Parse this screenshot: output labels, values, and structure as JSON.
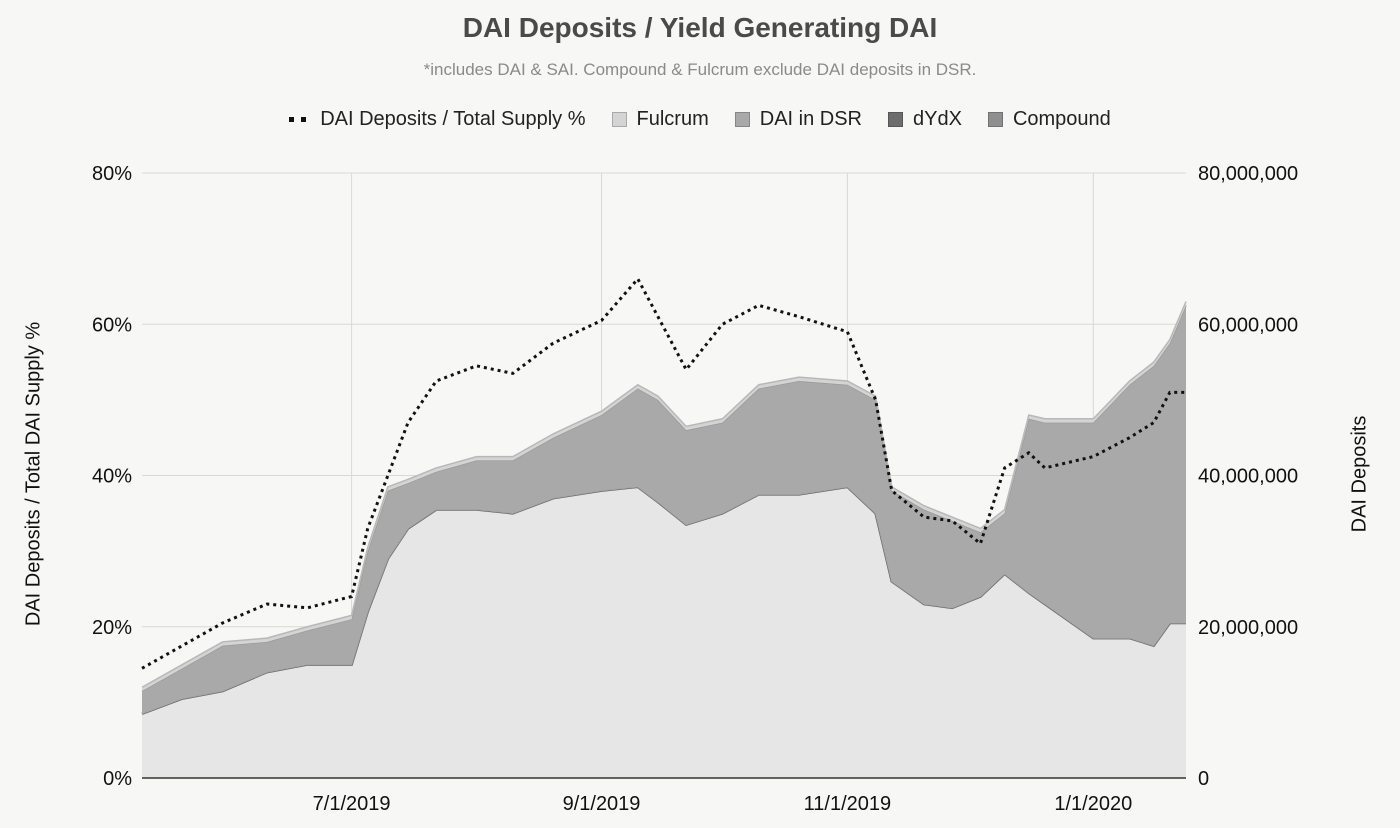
{
  "chart_data": {
    "type": "area",
    "title": "DAI Deposits / Yield Generating DAI",
    "subtitle": "*includes DAI & SAI. Compound & Fulcrum exclude DAI deposits in DSR.",
    "ylabel_left": "DAI Deposits / Total DAI Supply %",
    "ylabel_right": "DAI Deposits",
    "y_left_ticks": [
      "0%",
      "20%",
      "40%",
      "60%",
      "80%"
    ],
    "y_right_ticks": [
      "0",
      "20,000,000",
      "40,000,000",
      "60,000,000",
      "80,000,000"
    ],
    "x_ticks": [
      "7/1/2019",
      "9/1/2019",
      "11/1/2019",
      "1/1/2020"
    ],
    "ylim_left": [
      0,
      80
    ],
    "ylim_right": [
      0,
      80000000
    ],
    "grid": true,
    "legend_position": "top",
    "x_dates": [
      "2019-05-10",
      "2019-05-20",
      "2019-05-30",
      "2019-06-10",
      "2019-06-20",
      "2019-07-01",
      "2019-07-05",
      "2019-07-10",
      "2019-07-15",
      "2019-07-22",
      "2019-08-01",
      "2019-08-10",
      "2019-08-20",
      "2019-09-01",
      "2019-09-10",
      "2019-09-15",
      "2019-09-22",
      "2019-10-01",
      "2019-10-10",
      "2019-10-20",
      "2019-11-01",
      "2019-11-08",
      "2019-11-12",
      "2019-11-20",
      "2019-11-27",
      "2019-12-04",
      "2019-12-10",
      "2019-12-16",
      "2019-12-20",
      "2020-01-01",
      "2020-01-10",
      "2020-01-16",
      "2020-01-20",
      "2020-01-24"
    ],
    "series": [
      {
        "name": "Compound",
        "kind": "area",
        "color": "#e6e6e6",
        "values": [
          8.5,
          10.5,
          11.5,
          14,
          15,
          15,
          22,
          29,
          33,
          35.5,
          35.5,
          35,
          37,
          38,
          38.5,
          36.5,
          33.5,
          35,
          37.5,
          37.5,
          38.5,
          35,
          26,
          23,
          22.5,
          24,
          27,
          24.5,
          23,
          18.5,
          18.5,
          17.5,
          20.5,
          20.5
        ]
      },
      {
        "name": "dYdX",
        "kind": "band",
        "color": "#6d6d6d",
        "values": [
          0,
          0,
          0,
          0,
          0,
          0,
          0,
          0,
          0,
          0,
          0,
          0,
          0,
          0,
          0,
          0,
          0,
          0,
          0,
          0,
          0,
          0,
          0,
          0,
          0,
          0,
          0,
          0,
          0,
          0,
          0,
          0,
          0,
          0
        ]
      },
      {
        "name": "DAI in DSR",
        "kind": "band",
        "color": "#a9a9a9",
        "values": [
          3,
          4,
          6,
          4,
          4.5,
          6,
          8,
          9,
          6,
          5,
          6.5,
          7,
          8,
          10,
          13,
          13.5,
          12.5,
          12,
          14,
          15,
          13.5,
          15,
          12,
          12.5,
          11.5,
          8.5,
          8,
          23,
          24,
          28.5,
          33.5,
          37,
          37,
          42
        ]
      },
      {
        "name": "Fulcrum",
        "kind": "band",
        "color": "#d4d4d4",
        "values": [
          0.5,
          0.5,
          0.5,
          0.5,
          0.5,
          0.5,
          0.5,
          0.5,
          0.5,
          0.5,
          0.5,
          0.5,
          0.5,
          0.5,
          0.5,
          0.5,
          0.5,
          0.5,
          0.5,
          0.5,
          0.5,
          0.5,
          0.5,
          0.5,
          0.5,
          0.5,
          0.5,
          0.5,
          0.5,
          0.5,
          0.5,
          0.5,
          0.5,
          0.5
        ]
      },
      {
        "name": "DAI Deposits / Total Supply %",
        "kind": "line",
        "color": "#111111",
        "values": [
          14.5,
          17.5,
          20.5,
          23,
          22.5,
          24,
          33,
          40,
          47,
          52.5,
          54.5,
          53.5,
          57.5,
          60.5,
          66,
          61,
          54,
          60,
          62.5,
          61,
          59,
          50,
          38,
          34.5,
          34,
          31,
          41,
          43,
          41,
          42.5,
          45,
          47,
          51,
          51
        ]
      }
    ]
  },
  "colors": {
    "background": "#f7f7f5",
    "grid": "#d8d8d8",
    "axis": "#333333",
    "title": "#4a4a4a",
    "subtitle": "#8a8a8a"
  }
}
